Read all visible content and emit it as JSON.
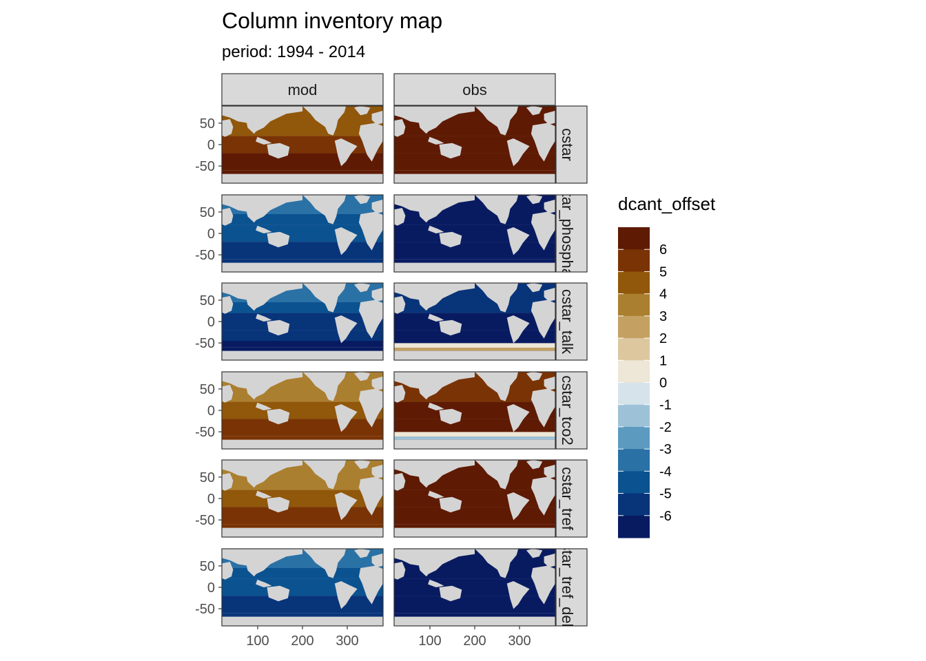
{
  "title": "Column inventory map",
  "subtitle": "period: 1994 - 2014",
  "columns": [
    "mod",
    "obs"
  ],
  "rows": [
    "cstar",
    "cstar_phosphate",
    "cstar_talk",
    "cstar_tco2",
    "cstar_tref",
    "cstar_tref_delta"
  ],
  "x_ticks": [
    "100",
    "200",
    "300"
  ],
  "y_ticks": [
    "50",
    "0",
    "-50"
  ],
  "legend": {
    "title": "dcant_offset",
    "labels": [
      "6",
      "5",
      "4",
      "3",
      "2",
      "1",
      "0",
      "-1",
      "-2",
      "-3",
      "-4",
      "-5",
      "-6"
    ],
    "colors": [
      "#5e1a03",
      "#7a3305",
      "#91570a",
      "#ab7f30",
      "#c4a163",
      "#dcc79f",
      "#eee6d6",
      "#d6e3ea",
      "#9dc2d8",
      "#5d9ac0",
      "#2a71a6",
      "#0b5290",
      "#08347a",
      "#081b61"
    ]
  },
  "chart_data": {
    "type": "heatmap",
    "title": "Column inventory map",
    "subtitle": "period: 1994 - 2014",
    "x_ticks": [
      100,
      200,
      300
    ],
    "y_ticks": [
      50,
      0,
      -50
    ],
    "facet_cols": [
      "mod",
      "obs"
    ],
    "facet_rows": [
      "cstar",
      "cstar_phosphate",
      "cstar_talk",
      "cstar_tco2",
      "cstar_tref",
      "cstar_tref_delta"
    ],
    "fill": "dcant_offset",
    "fill_breaks": [
      6,
      5,
      4,
      3,
      2,
      1,
      0,
      -1,
      -2,
      -3,
      -4,
      -5,
      -6
    ],
    "panel_levels": {
      "mod|cstar": 5.5,
      "obs|cstar": 6.5,
      "mod|cstar_phosphate": -4.5,
      "obs|cstar_phosphate": -6.5,
      "mod|cstar_talk": -5.0,
      "obs|cstar_talk": -6.0,
      "mod|cstar_tco2": 4.5,
      "obs|cstar_tco2": 6.0,
      "mod|cstar_tref": 4.5,
      "obs|cstar_tref": 6.5,
      "mod|cstar_tref_delta": -4.5,
      "obs|cstar_tref_delta": -6.5
    }
  }
}
